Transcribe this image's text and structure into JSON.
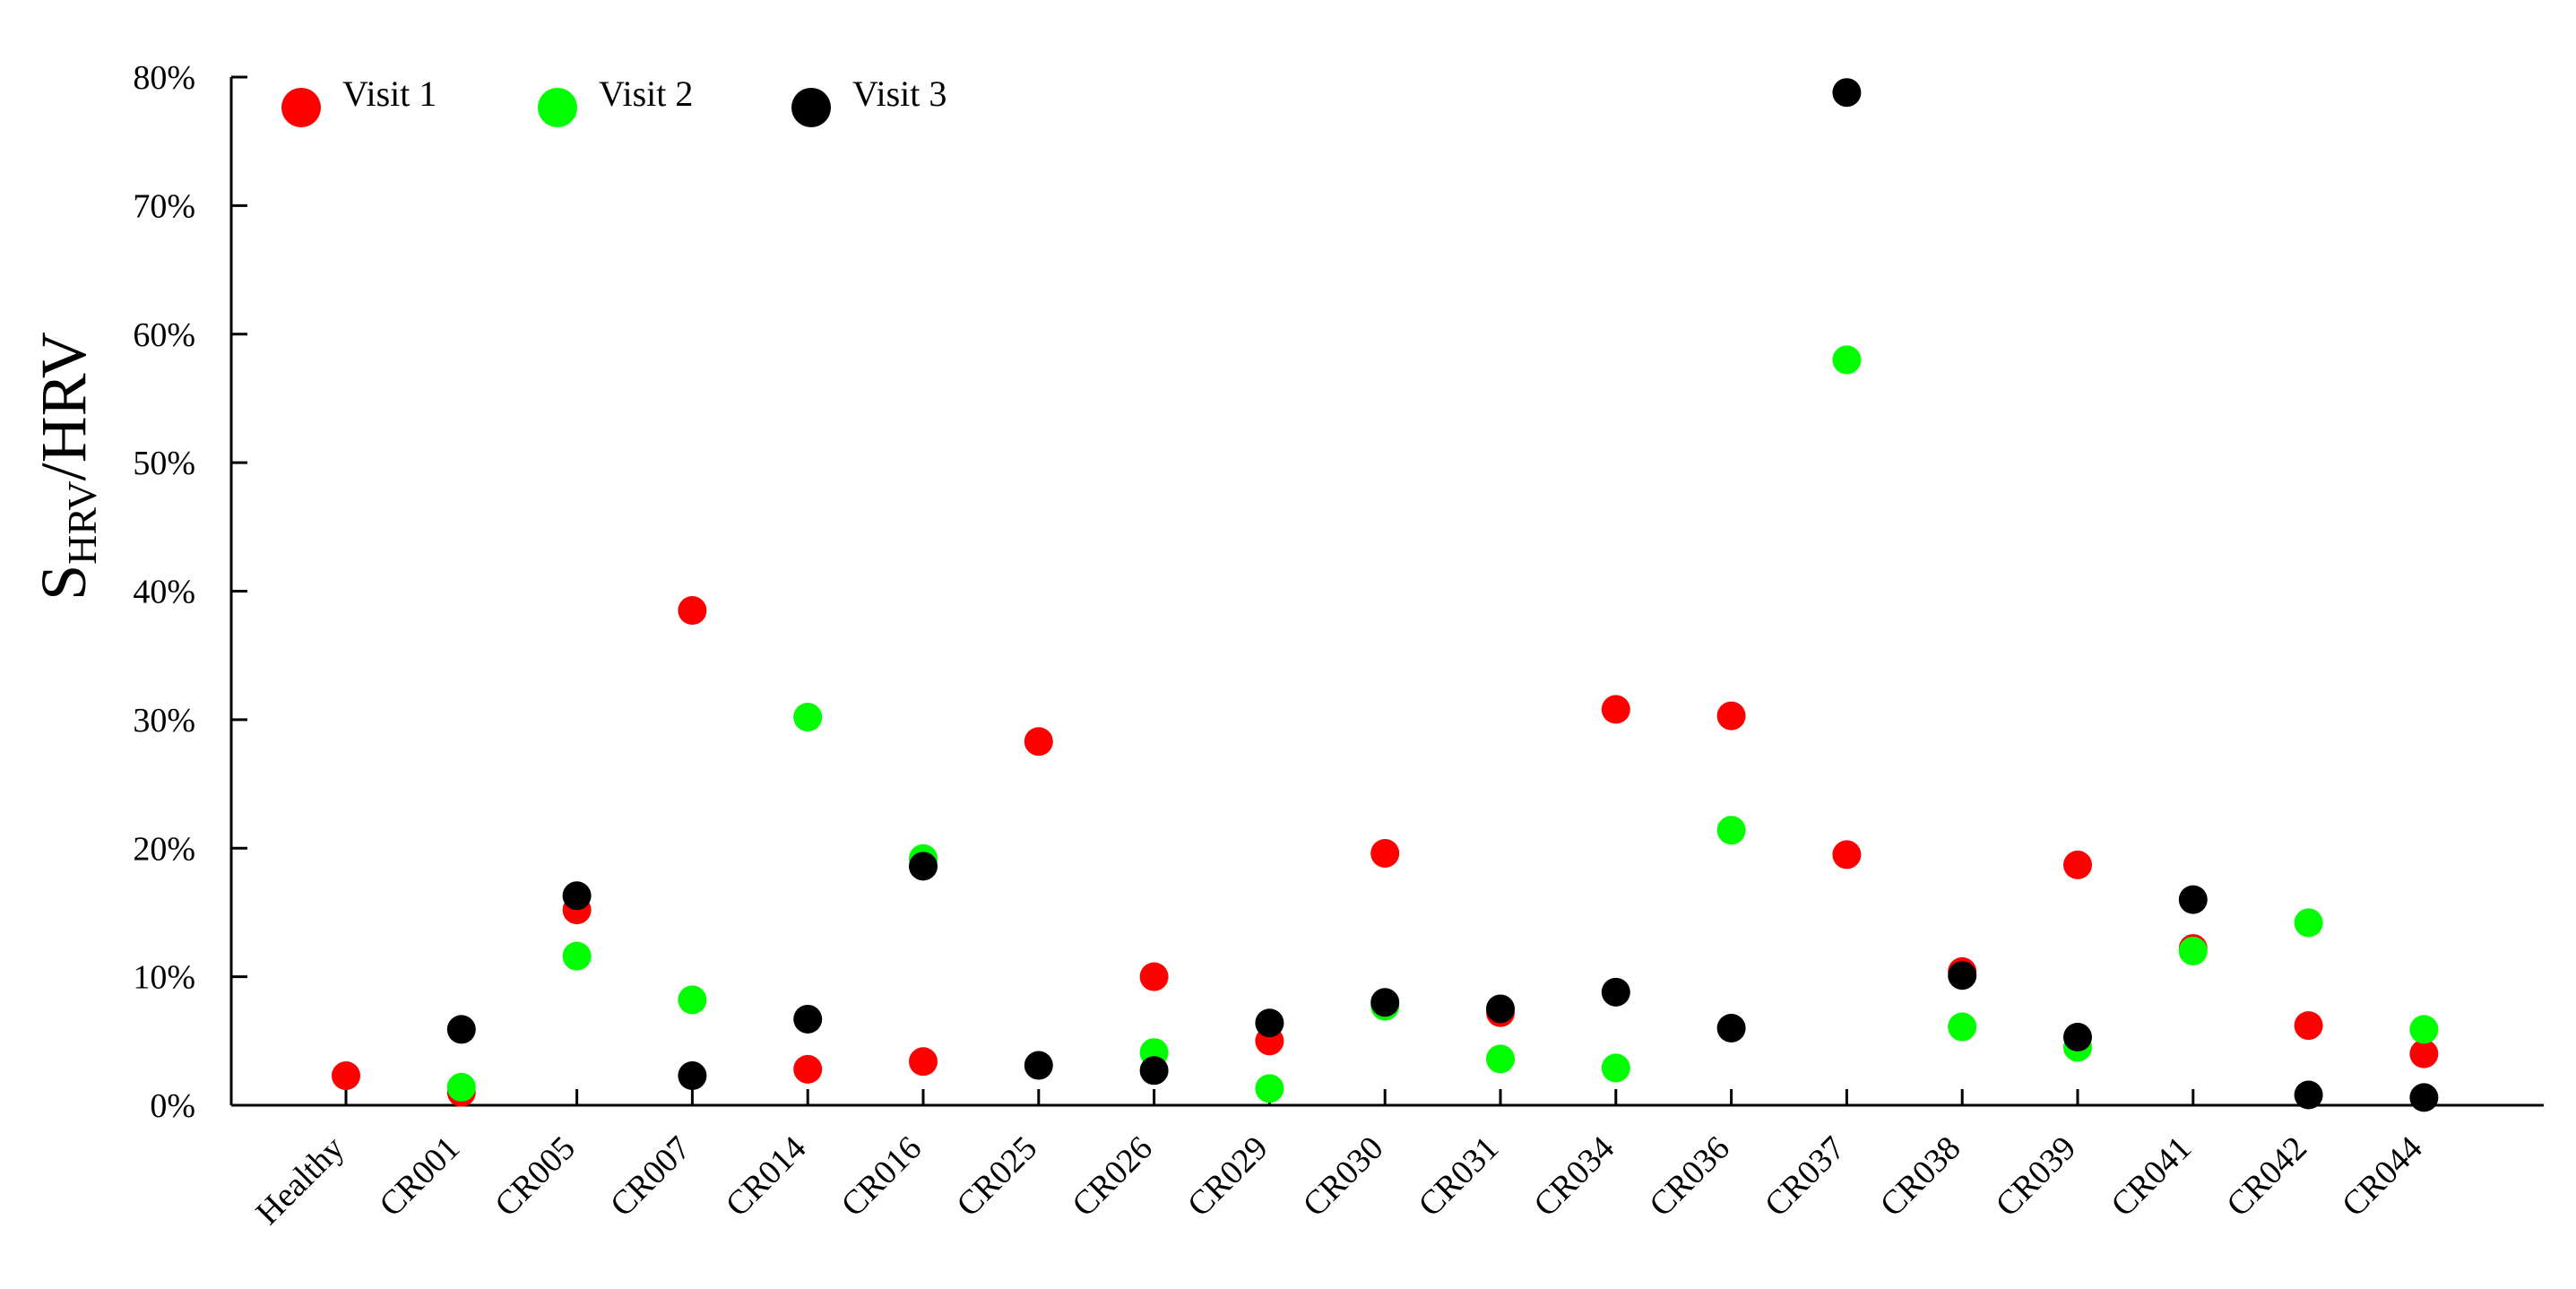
{
  "chart_data": {
    "type": "scatter",
    "ylabel": {
      "main": "S",
      "subscript": "HRV",
      "suffix": "/HRV"
    },
    "ylim": [
      0,
      80
    ],
    "yticks": [
      "0%",
      "10%",
      "20%",
      "30%",
      "40%",
      "50%",
      "60%",
      "70%",
      "80%"
    ],
    "ytick_values": [
      0,
      10,
      20,
      30,
      40,
      50,
      60,
      70,
      80
    ],
    "categories": [
      "Healthy",
      "CR001",
      "CR005",
      "CR007",
      "CR014",
      "CR016",
      "CR025",
      "CR026",
      "CR029",
      "CR030",
      "CR031",
      "CR034",
      "CR036",
      "CR037",
      "CR038",
      "CR039",
      "CR041",
      "CR042",
      "CR044"
    ],
    "legend_position": "top-left",
    "grid": false,
    "series": [
      {
        "name": "Visit 1",
        "color": "#ff0000",
        "values": [
          2.3,
          1.0,
          15.2,
          38.5,
          2.8,
          3.4,
          28.3,
          10.0,
          5.0,
          19.6,
          7.2,
          30.8,
          30.3,
          19.5,
          10.4,
          18.7,
          12.2,
          6.2,
          4.0
        ]
      },
      {
        "name": "Visit 2",
        "color": "#00ff00",
        "values": [
          null,
          1.4,
          11.6,
          8.2,
          30.2,
          19.2,
          null,
          4.1,
          1.3,
          7.7,
          3.6,
          2.9,
          21.4,
          58.0,
          6.1,
          4.5,
          12.0,
          14.2,
          5.9
        ]
      },
      {
        "name": "Visit 3",
        "color": "#000000",
        "values": [
          null,
          5.9,
          16.3,
          2.3,
          6.7,
          18.6,
          3.1,
          2.7,
          6.4,
          8.0,
          7.5,
          8.8,
          6.0,
          78.8,
          10.1,
          5.3,
          16.0,
          0.8,
          0.6
        ]
      }
    ]
  }
}
